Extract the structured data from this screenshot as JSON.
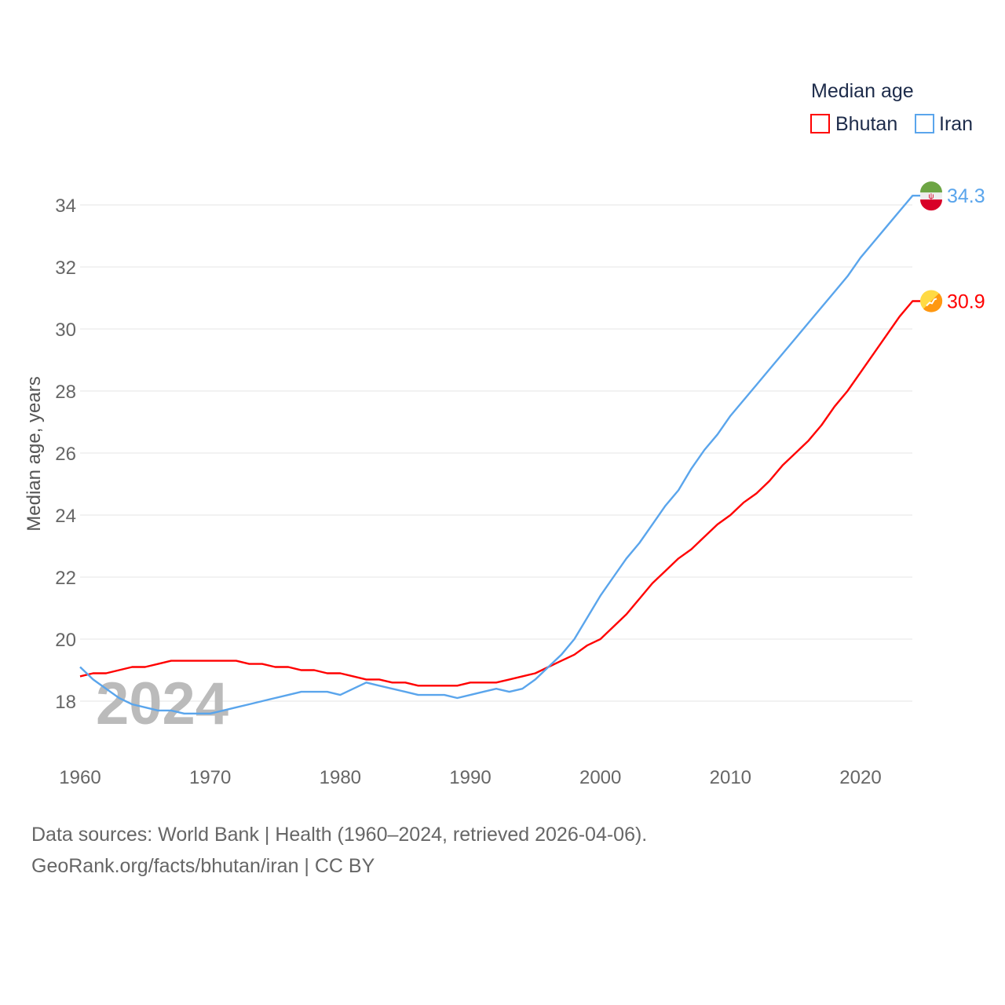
{
  "chart_data": {
    "type": "line",
    "title": "",
    "legend_title": "Median age",
    "legend_placement": "top-right",
    "xlabel": "",
    "ylabel": "Median age, years",
    "xlim": [
      1960,
      2024
    ],
    "ylim": [
      16.8,
      35
    ],
    "x_ticks": [
      "1960",
      "1970",
      "1980",
      "1990",
      "2000",
      "2010",
      "2020"
    ],
    "y_ticks": [
      "18",
      "20",
      "22",
      "24",
      "26",
      "28",
      "30",
      "32",
      "34"
    ],
    "grid": true,
    "watermark_year": "2024",
    "x": [
      1960,
      1961,
      1962,
      1963,
      1964,
      1965,
      1966,
      1967,
      1968,
      1969,
      1970,
      1971,
      1972,
      1973,
      1974,
      1975,
      1976,
      1977,
      1978,
      1979,
      1980,
      1981,
      1982,
      1983,
      1984,
      1985,
      1986,
      1987,
      1988,
      1989,
      1990,
      1991,
      1992,
      1993,
      1994,
      1995,
      1996,
      1997,
      1998,
      1999,
      2000,
      2001,
      2002,
      2003,
      2004,
      2005,
      2006,
      2007,
      2008,
      2009,
      2010,
      2011,
      2012,
      2013,
      2014,
      2015,
      2016,
      2017,
      2018,
      2019,
      2020,
      2021,
      2022,
      2023,
      2024
    ],
    "series": [
      {
        "name": "Bhutan",
        "color": "#ff0000",
        "end_label": "30.9",
        "values": [
          18.8,
          18.9,
          18.9,
          19.0,
          19.1,
          19.1,
          19.2,
          19.3,
          19.3,
          19.3,
          19.3,
          19.3,
          19.3,
          19.2,
          19.2,
          19.1,
          19.1,
          19.0,
          19.0,
          18.9,
          18.9,
          18.8,
          18.7,
          18.7,
          18.6,
          18.6,
          18.5,
          18.5,
          18.5,
          18.5,
          18.6,
          18.6,
          18.6,
          18.7,
          18.8,
          18.9,
          19.1,
          19.3,
          19.5,
          19.8,
          20.0,
          20.4,
          20.8,
          21.3,
          21.8,
          22.2,
          22.6,
          22.9,
          23.3,
          23.7,
          24.0,
          24.4,
          24.7,
          25.1,
          25.6,
          26.0,
          26.4,
          26.9,
          27.5,
          28.0,
          28.6,
          29.2,
          29.8,
          30.4,
          30.9
        ]
      },
      {
        "name": "Iran",
        "color": "#5aa5ec",
        "end_label": "34.3",
        "values": [
          19.1,
          18.7,
          18.4,
          18.1,
          17.9,
          17.8,
          17.7,
          17.7,
          17.6,
          17.6,
          17.6,
          17.7,
          17.8,
          17.9,
          18.0,
          18.1,
          18.2,
          18.3,
          18.3,
          18.3,
          18.2,
          18.4,
          18.6,
          18.5,
          18.4,
          18.3,
          18.2,
          18.2,
          18.2,
          18.1,
          18.2,
          18.3,
          18.4,
          18.3,
          18.4,
          18.7,
          19.1,
          19.5,
          20.0,
          20.7,
          21.4,
          22.0,
          22.6,
          23.1,
          23.7,
          24.3,
          24.8,
          25.5,
          26.1,
          26.6,
          27.2,
          27.7,
          28.2,
          28.7,
          29.2,
          29.7,
          30.2,
          30.7,
          31.2,
          31.7,
          32.3,
          32.8,
          33.3,
          33.8,
          34.3
        ]
      }
    ]
  },
  "footer": {
    "line1": "Data sources: World Bank | Health (1960–2024, retrieved 2026-04-06).",
    "line2": "GeoRank.org/facts/bhutan/iran | CC BY"
  }
}
